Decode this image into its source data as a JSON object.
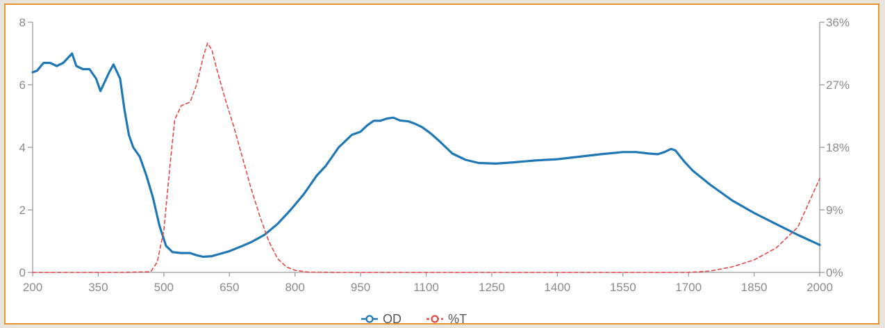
{
  "chart_data": {
    "type": "line",
    "title": "",
    "xlabel": "",
    "ylabel_left": "",
    "ylabel_right": "",
    "xlim": [
      200,
      2000
    ],
    "ylim_left": [
      0,
      8
    ],
    "ylim_right": [
      0,
      36
    ],
    "x_ticks": [
      "200",
      "350",
      "500",
      "650",
      "800",
      "950",
      "1100",
      "1250",
      "1400",
      "1550",
      "1700",
      "1850",
      "2000"
    ],
    "y_left_ticks": [
      "0",
      "2",
      "4",
      "6",
      "8"
    ],
    "y_right_ticks": [
      "0%",
      "9%",
      "18%",
      "27%",
      "36%"
    ],
    "grid": false,
    "legend_position": "bottom-center",
    "series": [
      {
        "name": "OD",
        "axis": "left",
        "color": "#1f77b4",
        "style": "solid",
        "points": [
          [
            200,
            6.4
          ],
          [
            210,
            6.45
          ],
          [
            225,
            6.7
          ],
          [
            240,
            6.7
          ],
          [
            255,
            6.6
          ],
          [
            270,
            6.7
          ],
          [
            290,
            7.0
          ],
          [
            300,
            6.6
          ],
          [
            315,
            6.5
          ],
          [
            330,
            6.5
          ],
          [
            345,
            6.2
          ],
          [
            355,
            5.8
          ],
          [
            365,
            6.1
          ],
          [
            375,
            6.4
          ],
          [
            385,
            6.65
          ],
          [
            400,
            6.2
          ],
          [
            410,
            5.2
          ],
          [
            420,
            4.4
          ],
          [
            430,
            4.0
          ],
          [
            445,
            3.7
          ],
          [
            460,
            3.1
          ],
          [
            475,
            2.4
          ],
          [
            490,
            1.5
          ],
          [
            505,
            0.85
          ],
          [
            520,
            0.65
          ],
          [
            540,
            0.62
          ],
          [
            560,
            0.62
          ],
          [
            575,
            0.55
          ],
          [
            590,
            0.5
          ],
          [
            610,
            0.52
          ],
          [
            630,
            0.6
          ],
          [
            650,
            0.68
          ],
          [
            680,
            0.85
          ],
          [
            700,
            0.97
          ],
          [
            730,
            1.2
          ],
          [
            760,
            1.55
          ],
          [
            790,
            2.0
          ],
          [
            820,
            2.5
          ],
          [
            850,
            3.1
          ],
          [
            870,
            3.4
          ],
          [
            885,
            3.7
          ],
          [
            900,
            4.0
          ],
          [
            915,
            4.2
          ],
          [
            930,
            4.4
          ],
          [
            950,
            4.5
          ],
          [
            965,
            4.7
          ],
          [
            980,
            4.85
          ],
          [
            995,
            4.85
          ],
          [
            1010,
            4.92
          ],
          [
            1025,
            4.95
          ],
          [
            1040,
            4.86
          ],
          [
            1060,
            4.83
          ],
          [
            1075,
            4.75
          ],
          [
            1090,
            4.65
          ],
          [
            1110,
            4.45
          ],
          [
            1130,
            4.2
          ],
          [
            1160,
            3.8
          ],
          [
            1190,
            3.6
          ],
          [
            1220,
            3.5
          ],
          [
            1260,
            3.48
          ],
          [
            1300,
            3.52
          ],
          [
            1350,
            3.58
          ],
          [
            1400,
            3.62
          ],
          [
            1450,
            3.7
          ],
          [
            1500,
            3.78
          ],
          [
            1550,
            3.85
          ],
          [
            1580,
            3.85
          ],
          [
            1610,
            3.8
          ],
          [
            1630,
            3.78
          ],
          [
            1645,
            3.85
          ],
          [
            1660,
            3.95
          ],
          [
            1670,
            3.9
          ],
          [
            1690,
            3.55
          ],
          [
            1710,
            3.25
          ],
          [
            1750,
            2.8
          ],
          [
            1800,
            2.3
          ],
          [
            1850,
            1.9
          ],
          [
            1900,
            1.55
          ],
          [
            1950,
            1.2
          ],
          [
            2000,
            0.88
          ]
        ]
      },
      {
        "name": "%T",
        "axis": "right",
        "color": "#e04848",
        "style": "dashed",
        "points": [
          [
            200,
            0
          ],
          [
            400,
            0
          ],
          [
            470,
            0.1
          ],
          [
            485,
            1.5
          ],
          [
            500,
            6
          ],
          [
            515,
            16
          ],
          [
            525,
            22
          ],
          [
            540,
            24
          ],
          [
            560,
            24.5
          ],
          [
            575,
            27
          ],
          [
            590,
            31
          ],
          [
            600,
            33
          ],
          [
            610,
            32
          ],
          [
            620,
            29.5
          ],
          [
            640,
            25
          ],
          [
            660,
            21
          ],
          [
            680,
            16.5
          ],
          [
            700,
            12
          ],
          [
            720,
            8
          ],
          [
            740,
            4.5
          ],
          [
            760,
            2
          ],
          [
            780,
            0.8
          ],
          [
            800,
            0.3
          ],
          [
            830,
            0.05
          ],
          [
            900,
            0
          ],
          [
            1000,
            0
          ],
          [
            1200,
            0
          ],
          [
            1400,
            0
          ],
          [
            1600,
            0
          ],
          [
            1700,
            0
          ],
          [
            1750,
            0.2
          ],
          [
            1800,
            0.8
          ],
          [
            1850,
            1.8
          ],
          [
            1900,
            3.5
          ],
          [
            1950,
            6.5
          ],
          [
            2000,
            13.5
          ]
        ]
      }
    ]
  }
}
